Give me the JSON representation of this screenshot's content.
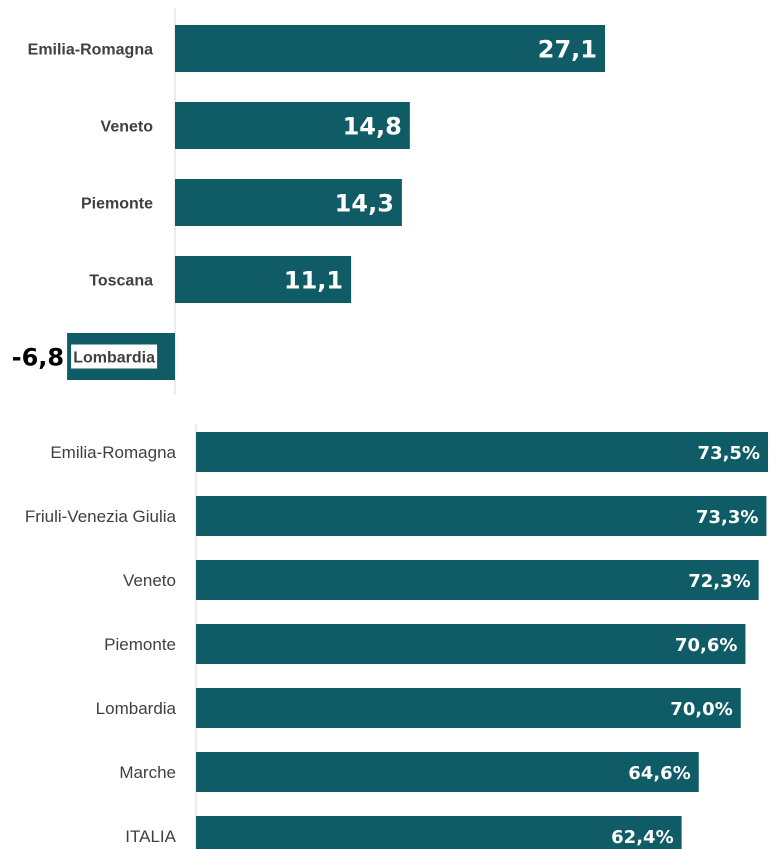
{
  "colors": {
    "bar": "#0f5b66",
    "axis": "#d9d9d9",
    "label": "#404040"
  },
  "chart_data": [
    {
      "type": "bar",
      "orientation": "horizontal",
      "categories": [
        "Emilia-Romagna",
        "Veneto",
        "Piemonte",
        "Toscana",
        "Lombardia"
      ],
      "values": [
        27.1,
        14.8,
        14.3,
        11.1,
        -6.8
      ],
      "data_labels": [
        "27,1",
        "14,8",
        "14,3",
        "11,1",
        "-6,8"
      ],
      "xlim": [
        -7,
        27.1
      ],
      "grid": false,
      "legend": "none"
    },
    {
      "type": "bar",
      "orientation": "horizontal",
      "categories": [
        "Emilia-Romagna",
        "Friuli-Venezia Giulia",
        "Veneto",
        "Piemonte",
        "Lombardia",
        "Marche",
        "ITALIA"
      ],
      "values": [
        73.5,
        73.3,
        72.3,
        70.6,
        70.0,
        64.6,
        62.4
      ],
      "data_labels": [
        "73,5%",
        "73,3%",
        "72,3%",
        "70,6%",
        "70,0%",
        "64,6%",
        "62,4%"
      ],
      "xlim": [
        0,
        73.5
      ],
      "grid": false,
      "legend": "none"
    }
  ]
}
